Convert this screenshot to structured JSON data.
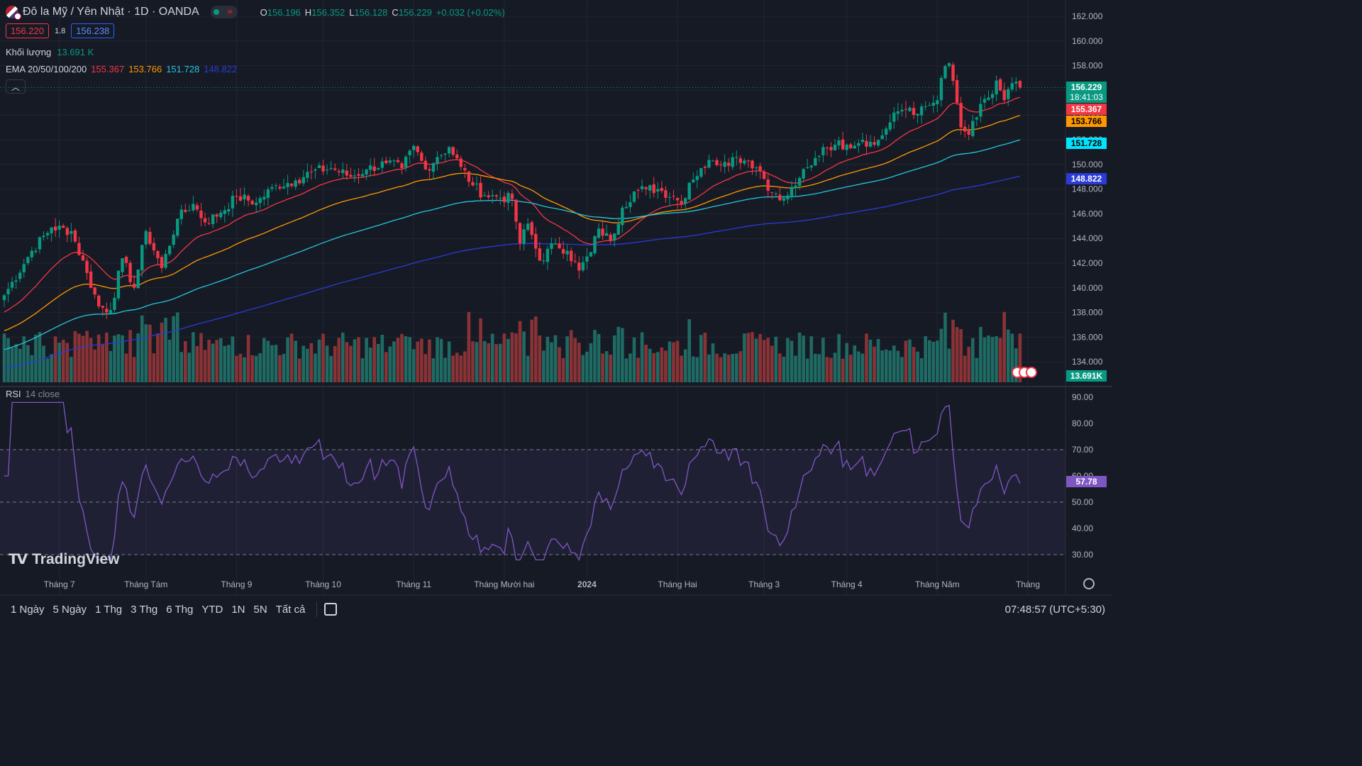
{
  "header": {
    "title": "Đô la Mỹ / Yên Nhật · 1D · OANDA",
    "ohlc": [
      {
        "k": "O",
        "v": "156.196"
      },
      {
        "k": "H",
        "v": "156.352"
      },
      {
        "k": "L",
        "v": "156.128"
      },
      {
        "k": "C",
        "v": "156.229"
      },
      {
        "k": "",
        "v": "+0.032 (+0.02%)"
      }
    ],
    "sell_price": "156.220",
    "spread": "1.8",
    "buy_price": "156.238"
  },
  "volume_legend": {
    "label": "Khối lượng",
    "value": "13.691 K"
  },
  "ema_legend": {
    "label": "EMA 20/50/100/200",
    "values": [
      {
        "v": "155.367",
        "color": "#f23645"
      },
      {
        "v": "153.766",
        "color": "#ff9800"
      },
      {
        "v": "151.728",
        "color": "#26c6da"
      },
      {
        "v": "148.822",
        "color": "#2a3bd6"
      }
    ]
  },
  "rsi_legend": {
    "label": "RSI",
    "params": "14 close",
    "value": "57.78"
  },
  "price_tags": [
    {
      "text": "156.229",
      "sub": "18:41:03",
      "bg": "#089981",
      "color": "#ffffff",
      "price": 156.229
    },
    {
      "text": "155.367",
      "bg": "#f23645",
      "color": "#ffffff",
      "price": 155.367
    },
    {
      "text": "153.766",
      "bg": "#ff9800",
      "color": "#000000",
      "price": 153.766
    },
    {
      "text": "151.728",
      "bg": "#00e5ff",
      "color": "#000000",
      "price": 151.728
    },
    {
      "text": "148.822",
      "bg": "#2a3bd6",
      "color": "#ffffff",
      "price": 148.822
    }
  ],
  "volume_tag": {
    "text": "13.691K",
    "bg": "#089981"
  },
  "rsi_tag": {
    "text": "57.78",
    "bg": "#7e57c2"
  },
  "logo": {
    "text": "TradingView"
  },
  "bottombar": {
    "timeframes": [
      "1 Ngày",
      "5 Ngày",
      "1 Thg",
      "3 Thg",
      "6 Thg",
      "YTD",
      "1N",
      "5N",
      "Tất cả"
    ],
    "clock": "07:48:57 (UTC+5:30)"
  },
  "colors": {
    "up": "#089981",
    "down": "#f23645",
    "vol_up": "#1f6b64",
    "vol_down": "#8a3336",
    "rsi_line": "#7e57c2",
    "grid": "#232632",
    "bg": "#161a25"
  },
  "chart_data": {
    "type": "candlestick",
    "symbol": "USDJPY",
    "price_axis": {
      "min": 133,
      "max": 163,
      "ticks": [
        "162.000",
        "160.000",
        "158.000",
        "156.000",
        "154.000",
        "152.000",
        "150.000",
        "148.000",
        "146.000",
        "144.000",
        "142.000",
        "140.000",
        "138.000",
        "136.000",
        "134.000"
      ]
    },
    "rsi_axis": {
      "min": 26,
      "max": 92,
      "ticks": [
        "90.00",
        "80.00",
        "70.00",
        "60.00",
        "50.00",
        "40.00",
        "30.00"
      ],
      "band": [
        30,
        70
      ]
    },
    "time_axis": [
      {
        "label": "Tháng 7",
        "i": 14
      },
      {
        "label": "Tháng Tám",
        "i": 36
      },
      {
        "label": "Tháng 9",
        "i": 59
      },
      {
        "label": "Tháng 10",
        "i": 81
      },
      {
        "label": "Tháng 11",
        "i": 104
      },
      {
        "label": "Tháng Mười hai",
        "i": 127
      },
      {
        "label": "2024",
        "i": 148
      },
      {
        "label": "Tháng Hai",
        "i": 171
      },
      {
        "label": "Tháng 3",
        "i": 193
      },
      {
        "label": "Tháng 4",
        "i": 214
      },
      {
        "label": "Tháng Năm",
        "i": 237
      },
      {
        "label": "Tháng",
        "i": 260
      }
    ],
    "close_anchors": [
      [
        0,
        139.4
      ],
      [
        7,
        143.0
      ],
      [
        12,
        144.9
      ],
      [
        17,
        144.6
      ],
      [
        21,
        141.2
      ],
      [
        24,
        138.5
      ],
      [
        27,
        138.2
      ],
      [
        30,
        142.4
      ],
      [
        33,
        140.0
      ],
      [
        36,
        144.6
      ],
      [
        40,
        141.6
      ],
      [
        44,
        145.6
      ],
      [
        48,
        146.8
      ],
      [
        51,
        145.3
      ],
      [
        55,
        146.1
      ],
      [
        59,
        147.4
      ],
      [
        64,
        146.9
      ],
      [
        69,
        148.3
      ],
      [
        74,
        148.7
      ],
      [
        78,
        149.4
      ],
      [
        83,
        149.7
      ],
      [
        88,
        149.0
      ],
      [
        92,
        149.6
      ],
      [
        97,
        150.1
      ],
      [
        101,
        149.7
      ],
      [
        104,
        151.5
      ],
      [
        107,
        149.6
      ],
      [
        110,
        150.6
      ],
      [
        113,
        151.4
      ],
      [
        116,
        149.8
      ],
      [
        119,
        148.3
      ],
      [
        122,
        147.5
      ],
      [
        125,
        147.4
      ],
      [
        129,
        147.2
      ],
      [
        131,
        143.6
      ],
      [
        133,
        145.2
      ],
      [
        136,
        142.2
      ],
      [
        140,
        143.6
      ],
      [
        143,
        143.0
      ],
      [
        146,
        141.4
      ],
      [
        149,
        142.9
      ],
      [
        151,
        144.8
      ],
      [
        154,
        143.8
      ],
      [
        157,
        146.5
      ],
      [
        160,
        147.8
      ],
      [
        163,
        148.0
      ],
      [
        166,
        148.0
      ],
      [
        170,
        147.4
      ],
      [
        172,
        146.8
      ],
      [
        174,
        148.5
      ],
      [
        177,
        149.7
      ],
      [
        180,
        150.3
      ],
      [
        183,
        150.2
      ],
      [
        186,
        150.6
      ],
      [
        189,
        150.3
      ],
      [
        192,
        149.5
      ],
      [
        195,
        147.7
      ],
      [
        197,
        147.1
      ],
      [
        199,
        147.5
      ],
      [
        202,
        148.9
      ],
      [
        205,
        149.9
      ],
      [
        208,
        151.4
      ],
      [
        211,
        151.6
      ],
      [
        214,
        151.6
      ],
      [
        218,
        152.0
      ],
      [
        221,
        151.6
      ],
      [
        224,
        152.9
      ],
      [
        227,
        154.3
      ],
      [
        230,
        154.6
      ],
      [
        232,
        154.1
      ],
      [
        235,
        154.8
      ],
      [
        237,
        155.2
      ],
      [
        238,
        157.0
      ],
      [
        240,
        158.2
      ],
      [
        242,
        155.0
      ],
      [
        243,
        153.0
      ],
      [
        245,
        152.4
      ],
      [
        247,
        153.8
      ],
      [
        249,
        155.3
      ],
      [
        251,
        155.7
      ],
      [
        252,
        156.8
      ],
      [
        254,
        155.2
      ],
      [
        255,
        156.1
      ],
      [
        257,
        156.7
      ],
      [
        258,
        156.229
      ]
    ],
    "close_axis_note": "Close prices read off the price axis at visible swing points; candles between anchors follow the overall path.",
    "emas": [
      {
        "name": "EMA 20",
        "last": 155.367,
        "color": "#f23645"
      },
      {
        "name": "EMA 50",
        "last": 153.766,
        "color": "#ff9800"
      },
      {
        "name": "EMA 100",
        "last": 151.728,
        "color": "#26c6da"
      },
      {
        "name": "EMA 200",
        "last": 148.822,
        "color": "#2a3bd6"
      }
    ],
    "rsi_last": 57.78,
    "volume_last": 13.691
  }
}
